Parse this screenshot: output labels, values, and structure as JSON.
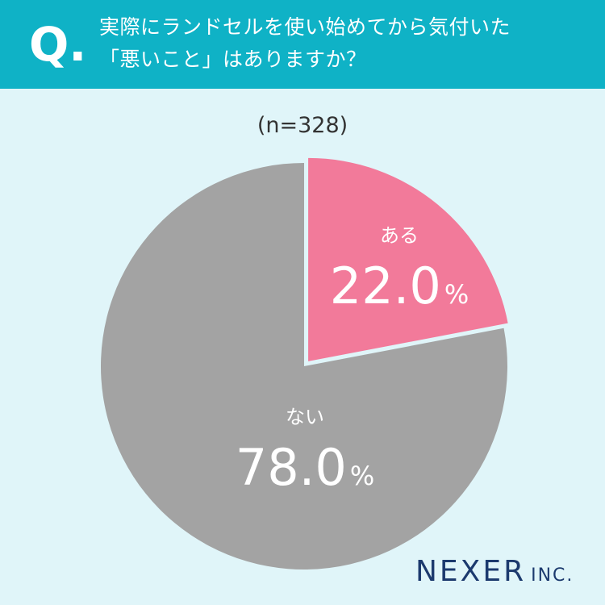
{
  "header": {
    "q_mark": "Q.",
    "question_line1": "実際にランドセルを使い始めてから気付いた",
    "question_line2": "「悪いこと」はありますか？"
  },
  "sample_size": "(n=328)",
  "chart_data": {
    "type": "pie",
    "title": "",
    "slices": [
      {
        "label": "ある",
        "value": 22.0,
        "display": "22.0",
        "unit": "%",
        "color": "#f27a9a"
      },
      {
        "label": "ない",
        "value": 78.0,
        "display": "78.0",
        "unit": "%",
        "color": "#a3a3a3"
      }
    ],
    "start_angle": "12 o'clock",
    "direction": "clockwise"
  },
  "brand": {
    "name": "NEXER",
    "suffix": "INC."
  },
  "colors": {
    "header": "#0fb2c6",
    "background": "#e0f5f9",
    "brand": "#1c3a6e"
  }
}
